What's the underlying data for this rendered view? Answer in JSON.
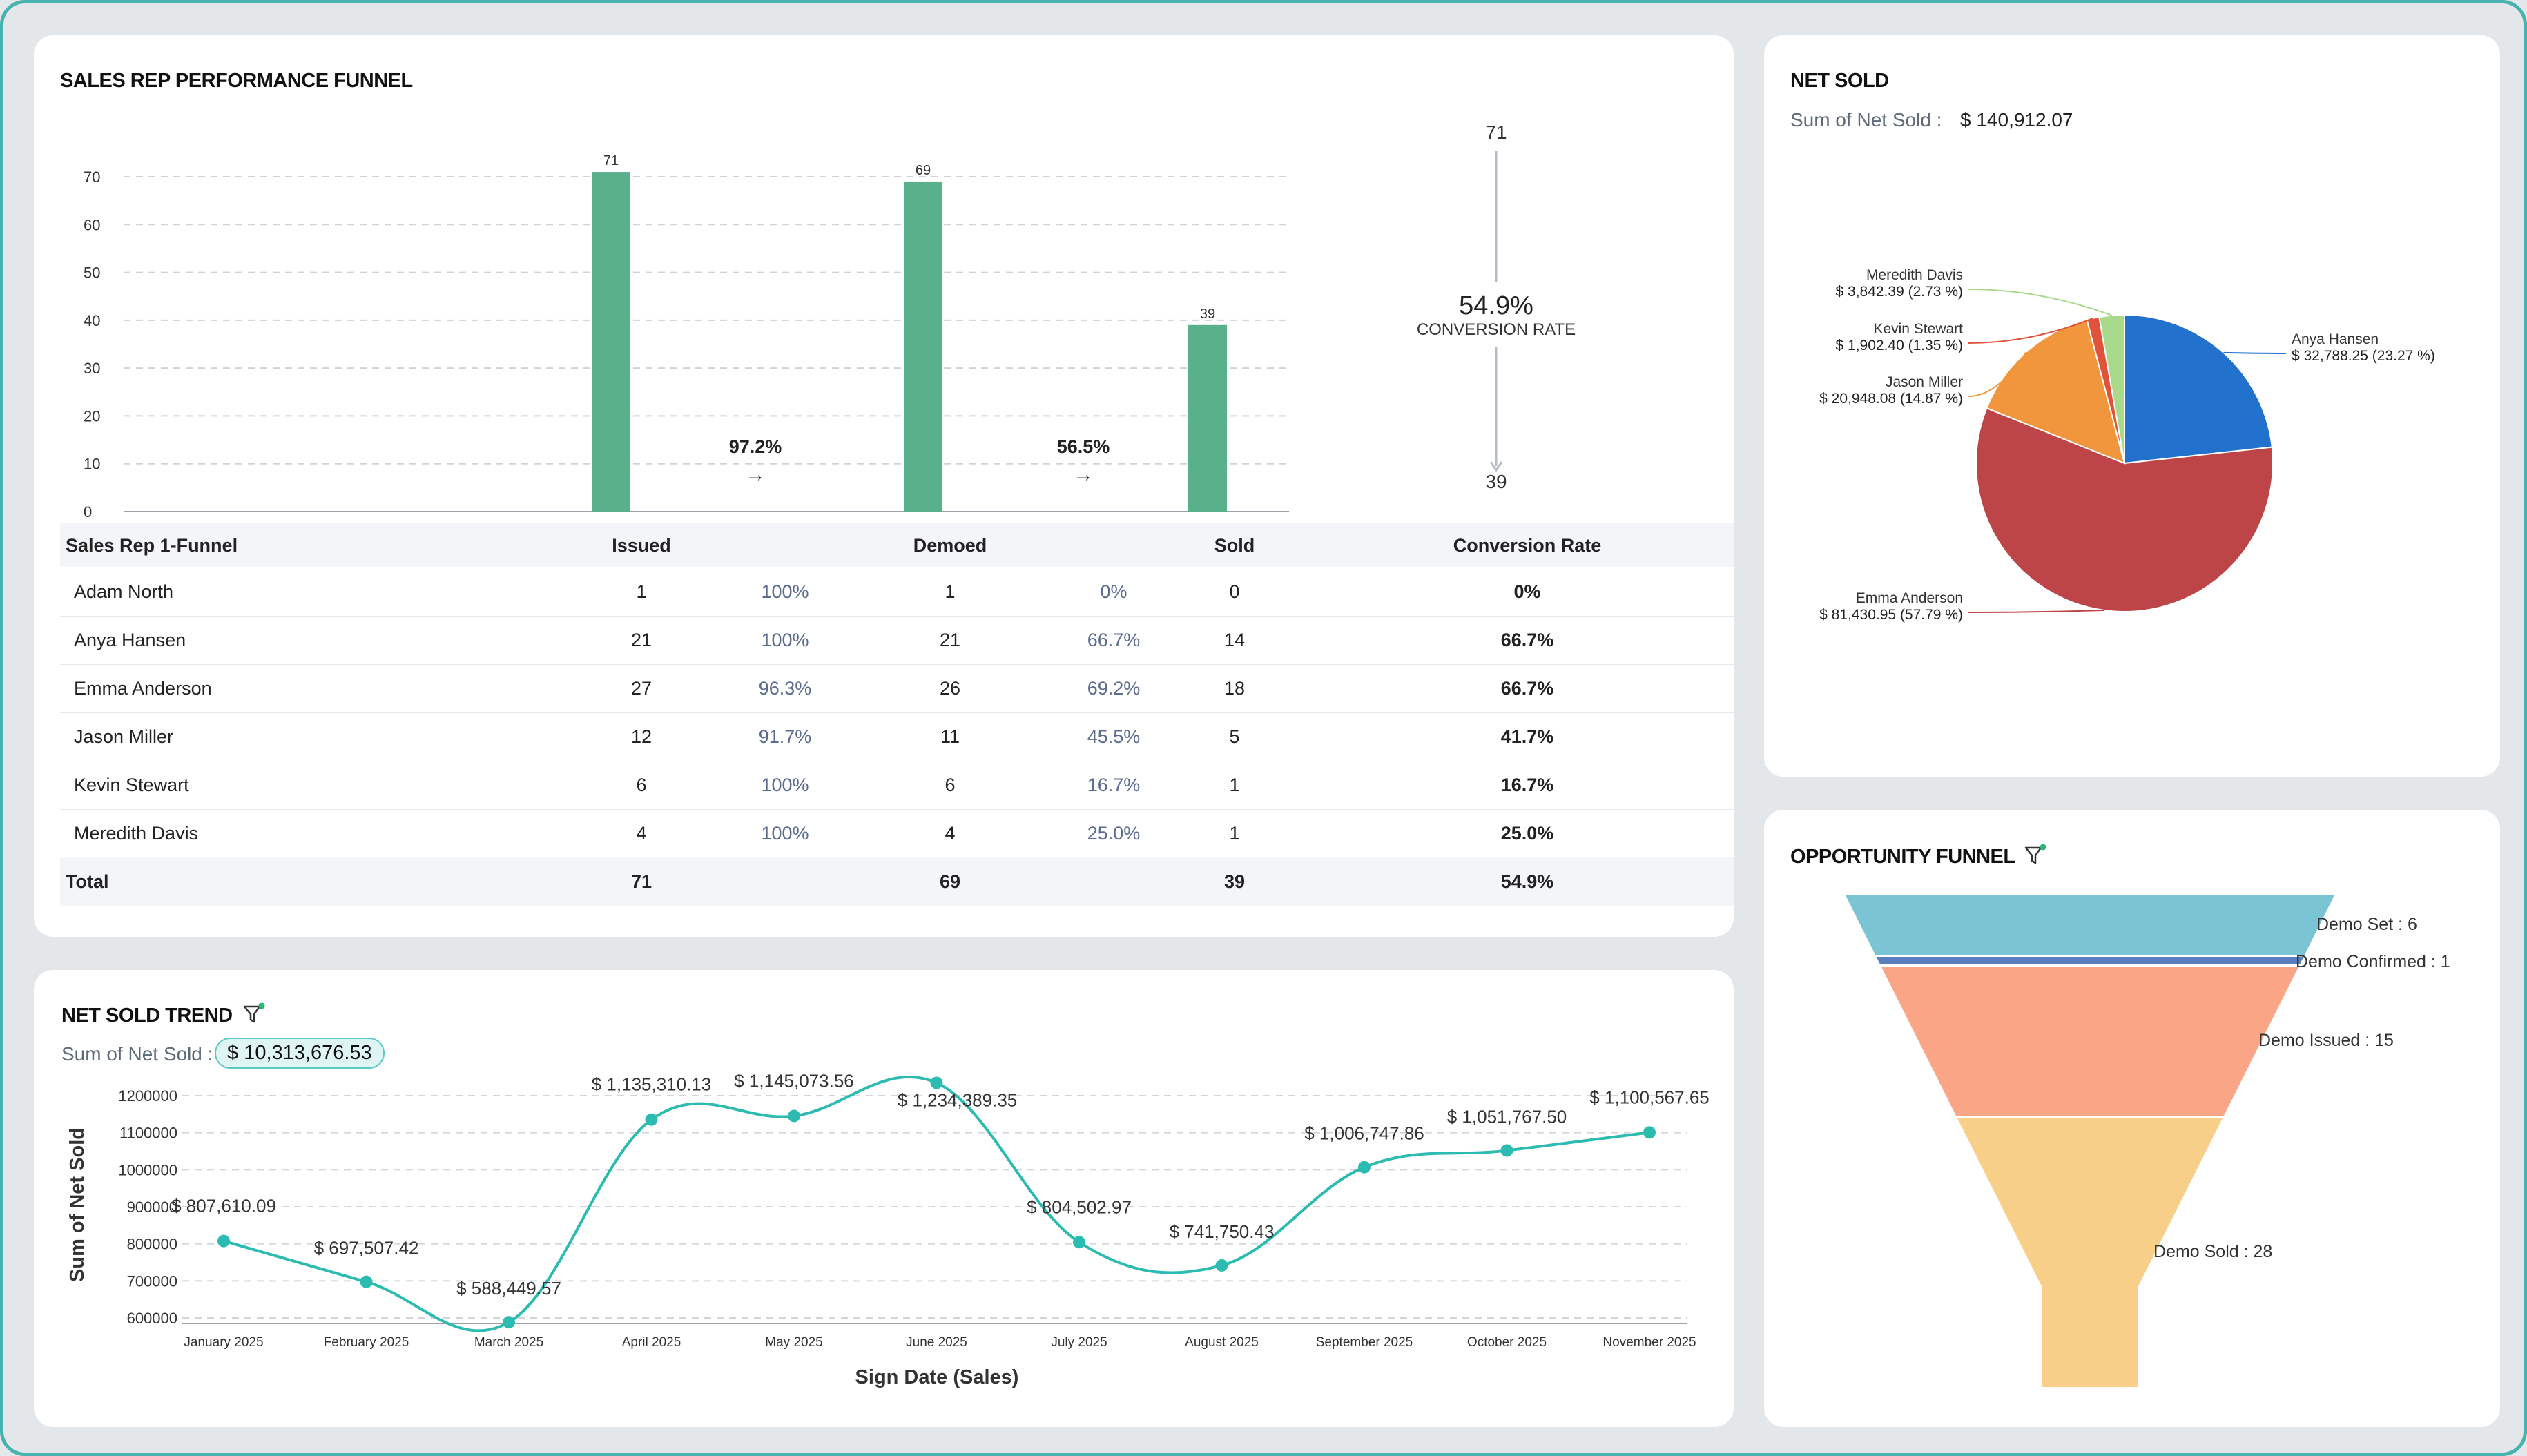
{
  "funnel_card": {
    "title": "SALES REP PERFORMANCE FUNNEL",
    "conversion_top": "71",
    "conversion_bottom": "39",
    "conversion_value": "54.9%",
    "conversion_label": "CONVERSION RATE",
    "step_rates": [
      "97.2%",
      "56.5%"
    ],
    "arrow_glyph": "→"
  },
  "funnel_table": {
    "headers": [
      "Sales Rep 1-Funnel",
      "Issued",
      "Demoed",
      "Sold",
      "Conversion Rate"
    ],
    "rows": [
      {
        "name": "Adam North",
        "issued": "1",
        "issued_pct": "100%",
        "demoed": "1",
        "demoed_pct": "0%",
        "sold": "0",
        "conv": "0%"
      },
      {
        "name": "Anya Hansen",
        "issued": "21",
        "issued_pct": "100%",
        "demoed": "21",
        "demoed_pct": "66.7%",
        "sold": "14",
        "conv": "66.7%"
      },
      {
        "name": "Emma Anderson",
        "issued": "27",
        "issued_pct": "96.3%",
        "demoed": "26",
        "demoed_pct": "69.2%",
        "sold": "18",
        "conv": "66.7%"
      },
      {
        "name": "Jason Miller",
        "issued": "12",
        "issued_pct": "91.7%",
        "demoed": "11",
        "demoed_pct": "45.5%",
        "sold": "5",
        "conv": "41.7%"
      },
      {
        "name": "Kevin Stewart",
        "issued": "6",
        "issued_pct": "100%",
        "demoed": "6",
        "demoed_pct": "16.7%",
        "sold": "1",
        "conv": "16.7%"
      },
      {
        "name": "Meredith Davis",
        "issued": "4",
        "issued_pct": "100%",
        "demoed": "4",
        "demoed_pct": "25.0%",
        "sold": "1",
        "conv": "25.0%"
      }
    ],
    "total": {
      "name": "Total",
      "issued": "71",
      "demoed": "69",
      "sold": "39",
      "conv": "54.9%"
    }
  },
  "net_sold_card": {
    "title": "NET SOLD",
    "sum_label": "Sum of Net Sold :",
    "sum_value": "$ 140,912.07"
  },
  "trend_card": {
    "title": "NET SOLD TREND",
    "sum_label": "Sum of Net Sold :",
    "sum_value": "$ 10,313,676.53"
  },
  "opportunity_card": {
    "title": "OPPORTUNITY FUNNEL"
  },
  "icons": {
    "filter": "filter-icon",
    "arrow": "arrow-right-icon"
  },
  "chart_data": [
    {
      "type": "bar",
      "categories": [
        "Issued",
        "Demoed",
        "Sold"
      ],
      "values": [
        71,
        69,
        39
      ],
      "data_labels": [
        "71",
        "69",
        "39"
      ],
      "ylim": [
        0,
        70
      ],
      "yticks": [
        0,
        10,
        20,
        30,
        40,
        50,
        60,
        70
      ],
      "grid": true,
      "color": "#59b18c"
    },
    {
      "type": "pie",
      "labels": [
        "Anya Hansen",
        "Emma Anderson",
        "Jason Miller",
        "Kevin Stewart",
        "Meredith Davis"
      ],
      "values": [
        32788.25,
        81430.95,
        20948.08,
        1902.4,
        3842.39
      ],
      "data_labels": [
        "$ 32,788.25 (23.27 %)",
        "$ 81,430.95 (57.79 %)",
        "$ 20,948.08 (14.87 %)",
        "$ 1,902.40 (1.35 %)",
        "$ 3,842.39 (2.73 %)"
      ],
      "colors": [
        "#2271cc",
        "#bd4548",
        "#f1963d",
        "#e0533b",
        "#a9d98a"
      ]
    },
    {
      "type": "line",
      "x": [
        "January 2025",
        "February 2025",
        "March 2025",
        "April 2025",
        "May 2025",
        "June 2025",
        "July 2025",
        "August 2025",
        "September 2025",
        "October 2025",
        "November 2025"
      ],
      "values": [
        807610.09,
        697507.42,
        588449.57,
        1135310.13,
        1145073.56,
        1234389.35,
        804502.97,
        741750.43,
        1006747.86,
        1051767.5,
        1100567.65
      ],
      "data_labels": [
        "$ 807,610.09",
        "$ 697,507.42",
        "$ 588,449.57",
        "$ 1,135,310.13",
        "$ 1,145,073.56",
        "$ 1,234,389.35",
        "$ 804,502.97",
        "$ 741,750.43",
        "$ 1,006,747.86",
        "$ 1,051,767.50",
        "$ 1,100,567.65"
      ],
      "xlabel": "Sign Date (Sales)",
      "ylabel": "Sum of Net Sold",
      "ylim": [
        600000,
        1200000
      ],
      "yticks": [
        600000,
        700000,
        800000,
        900000,
        1000000,
        1100000,
        1200000
      ],
      "grid": true,
      "color": "#2bbbb0"
    },
    {
      "type": "funnel",
      "labels": [
        "Demo Set",
        "Demo Confirmed",
        "Demo Issued",
        "Demo Sold"
      ],
      "values": [
        6,
        1,
        15,
        28
      ],
      "data_labels": [
        "Demo Set : 6",
        "Demo Confirmed : 1",
        "Demo Issued : 15",
        "Demo Sold : 28"
      ],
      "colors": [
        "#7ac4d4",
        "#5a7fc0",
        "#f9a586",
        "#f7cf88"
      ]
    }
  ]
}
